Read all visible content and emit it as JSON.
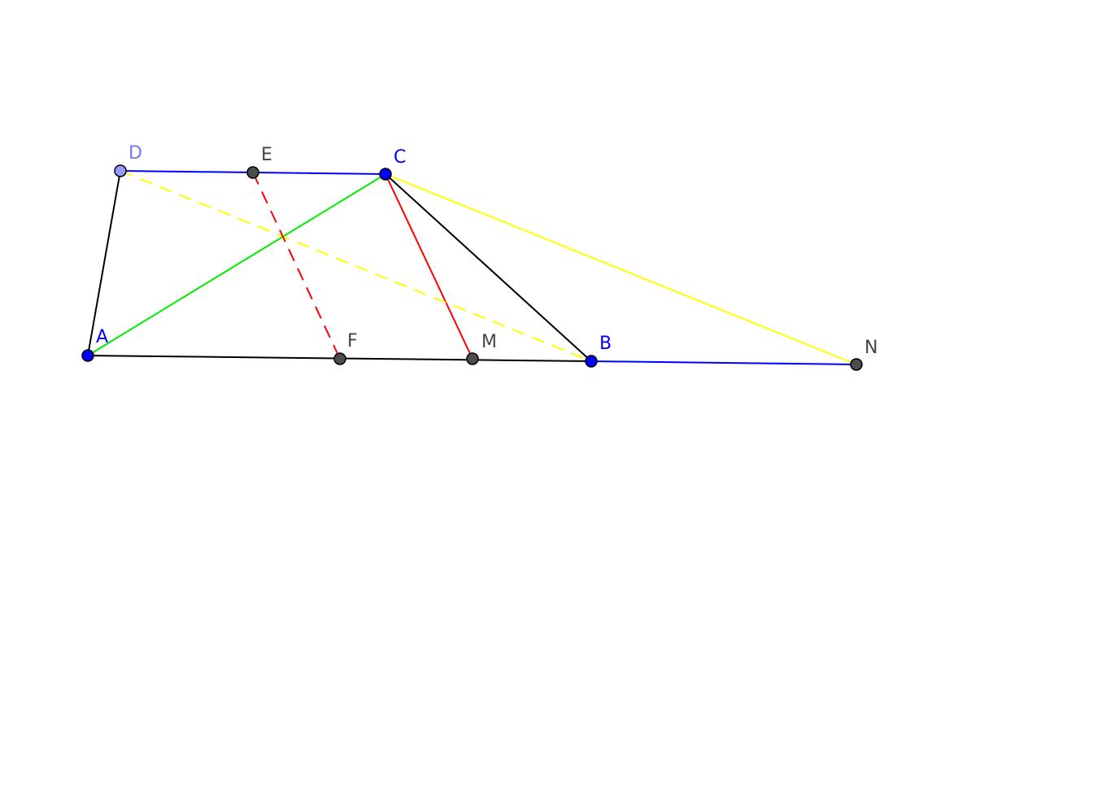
{
  "nodes": [
    {
      "label": "A"
    },
    {
      "label": "B"
    },
    {
      "label": "C"
    },
    {
      "label": "D"
    },
    {
      "label": "E"
    },
    {
      "label": "F"
    },
    {
      "label": "M"
    },
    {
      "label": "N"
    }
  ]
}
